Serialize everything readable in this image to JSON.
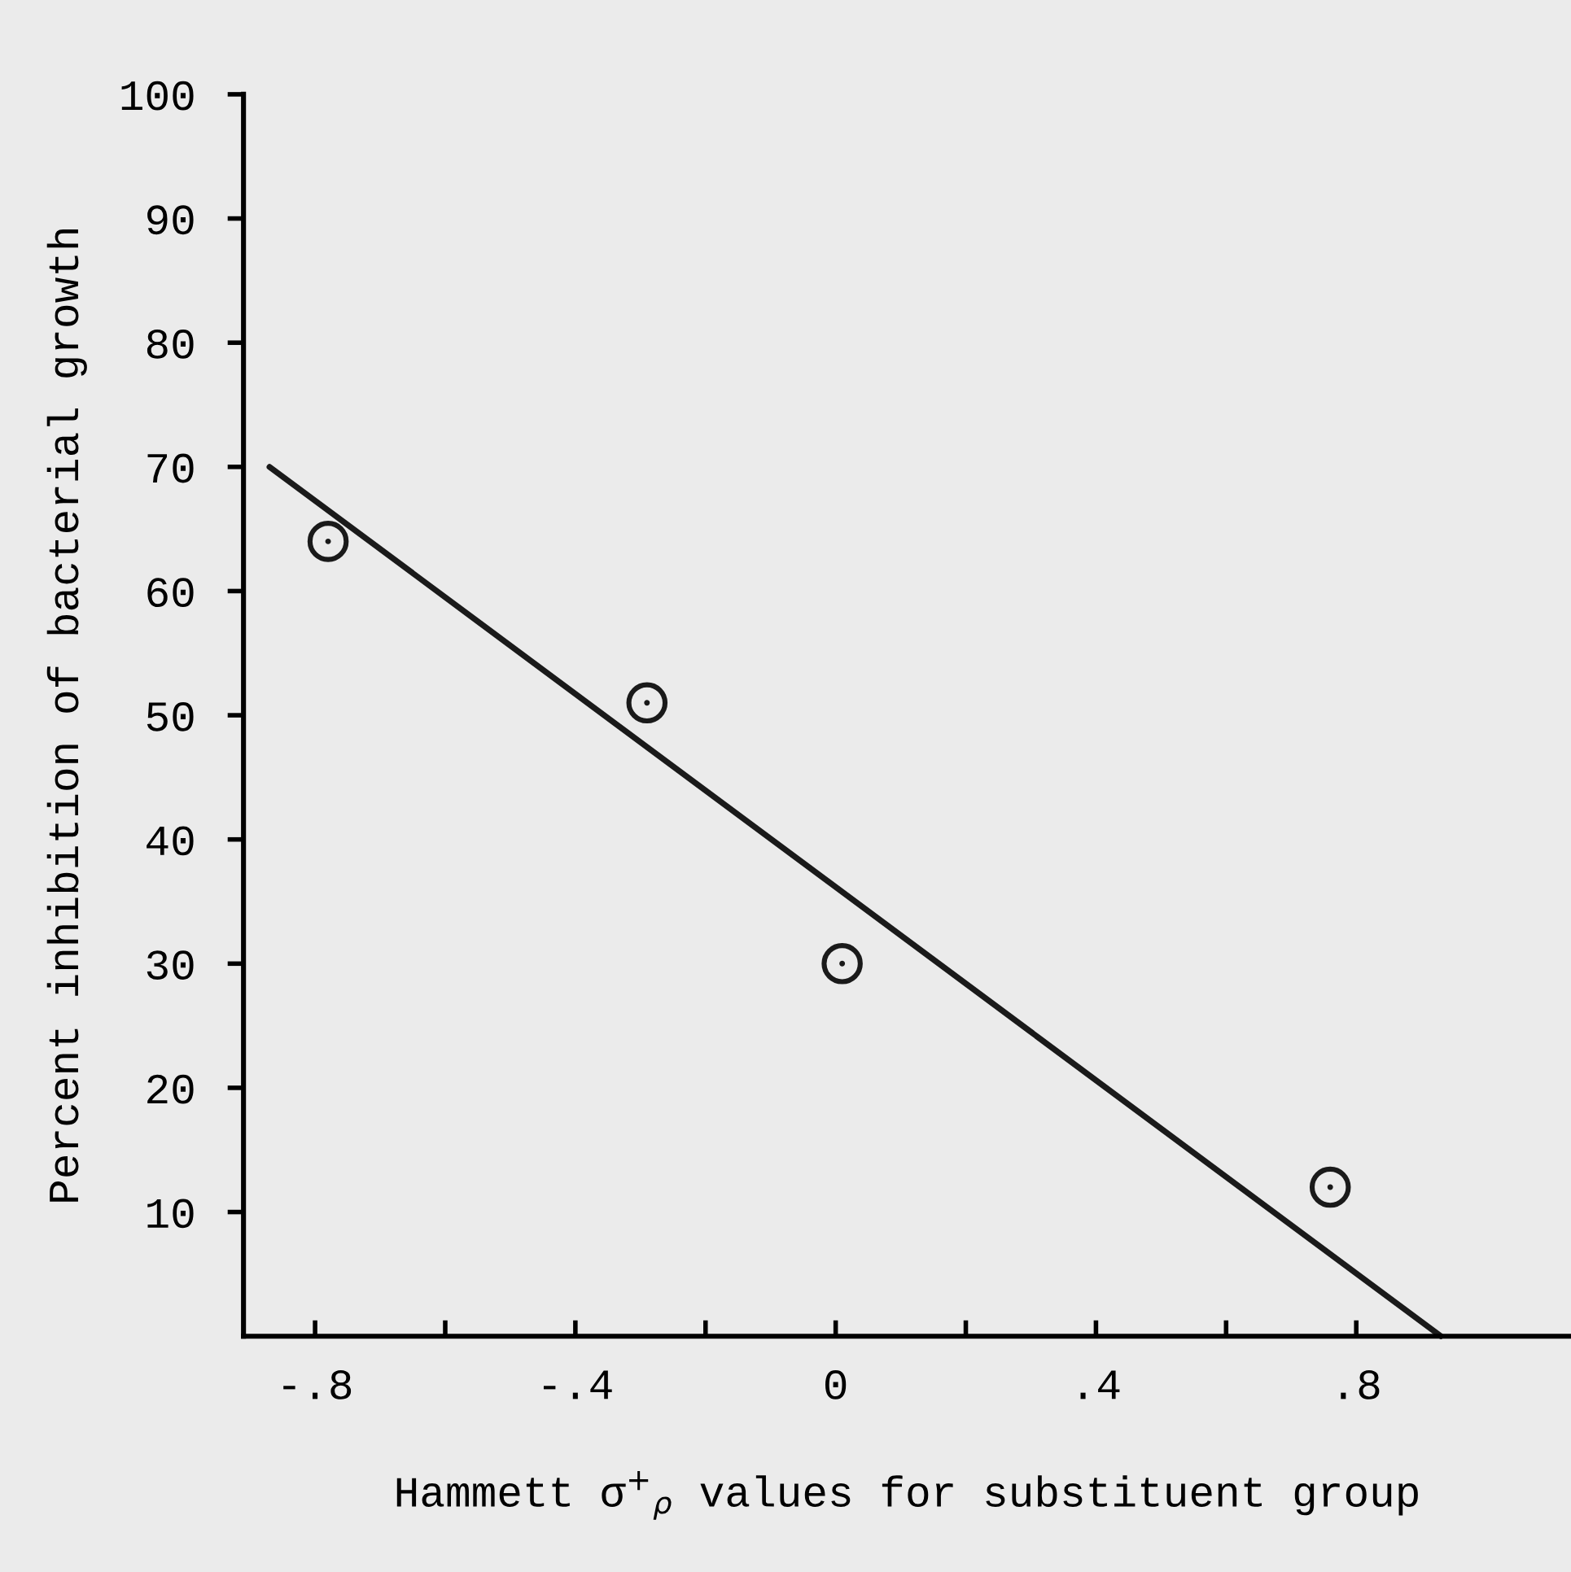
{
  "chart_data": {
    "type": "scatter",
    "xlabel": "Hammett σ$^{+}$$_{ρ}$ values for substituent group",
    "ylabel": "Percent inhibition of bacterial growth",
    "series": [
      {
        "color": "#1a1a1a",
        "marker": "circle",
        "x": [
          -0.78,
          -0.29,
          0.01,
          0.76
        ],
        "values": [
          64,
          51,
          30,
          12
        ]
      },
      {
        "type": "line",
        "color": "#1a1a1a",
        "marker": "none",
        "line_style": "solid",
        "x": [
          -0.87,
          0.93
        ],
        "values": [
          70,
          0
        ]
      }
    ],
    "xlim": [
      -0.91,
      1.13
    ],
    "ylim": [
      0,
      100
    ],
    "xticks": [
      {
        "value": -0.8,
        "label": "-.8"
      },
      {
        "value": -0.6,
        "label": null
      },
      {
        "value": -0.4,
        "label": "-.4"
      },
      {
        "value": -0.2,
        "label": null
      },
      0,
      {
        "value": 0.2,
        "label": null
      },
      {
        "value": 0.4,
        "label": ".4"
      },
      {
        "value": 0.6,
        "label": null
      },
      {
        "value": 0.8,
        "label": ".8"
      }
    ],
    "yticks": [
      10,
      20,
      30,
      40,
      50,
      60,
      70,
      80,
      90,
      100
    ],
    "grid": false,
    "legend": false
  }
}
